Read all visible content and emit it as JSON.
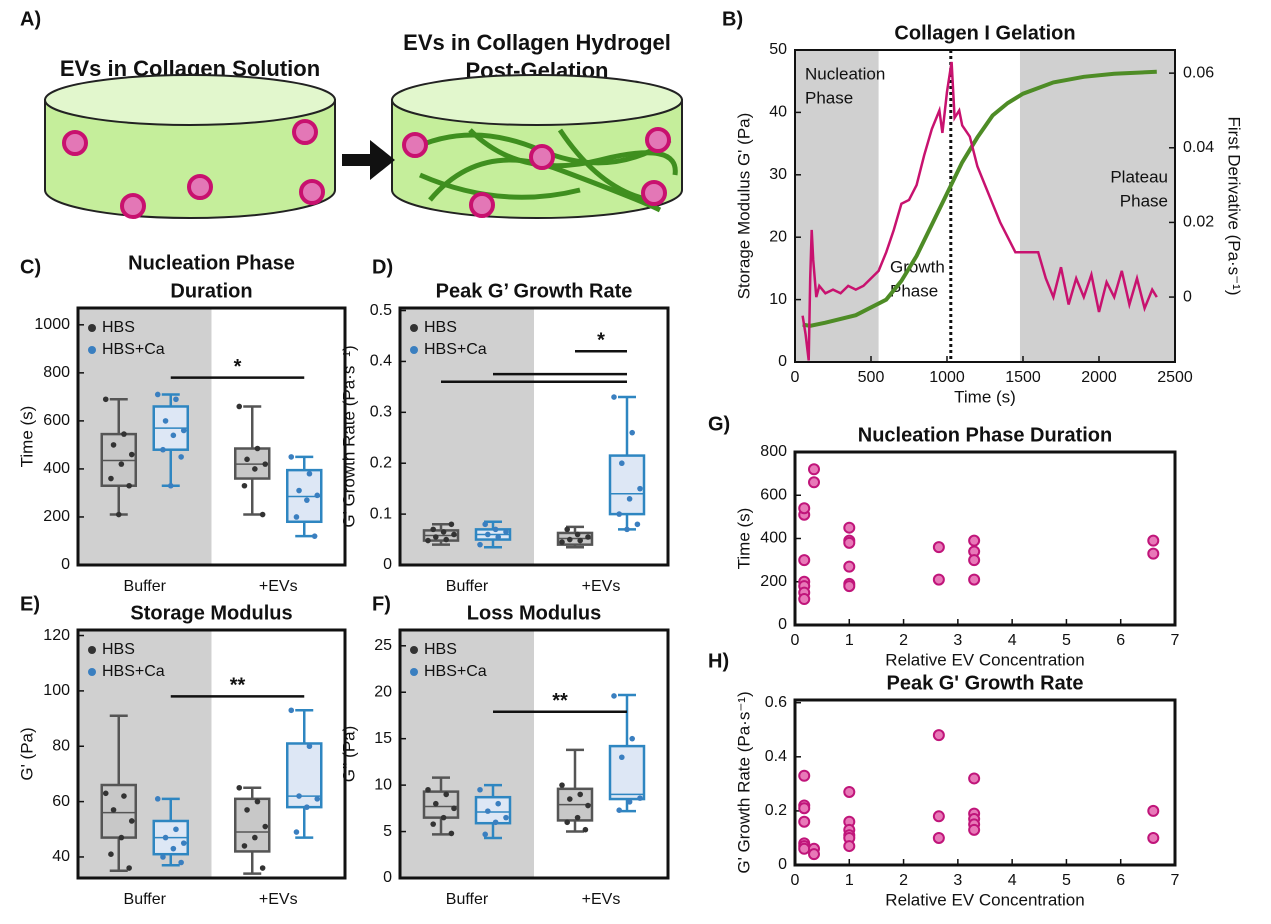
{
  "diagram": {
    "label": "A)",
    "left_title": "EVs in Collagen Solution",
    "right_title": [
      "EVs in Collagen Hydrogel",
      "Post-Gelation"
    ]
  },
  "chart_data": [
    {
      "type": "line",
      "panel_label": "B)",
      "title": "Collagen I Gelation",
      "xlabel": "Time (s)",
      "ylabel": "Storage Modulus G' (Pa)",
      "y2label": "First Derivative (Pa·s⁻¹)",
      "xlim": [
        0,
        2500
      ],
      "xticks": [
        0,
        500,
        1000,
        1500,
        2000,
        2500
      ],
      "ylim": [
        0,
        50
      ],
      "yticks": [
        0,
        10,
        20,
        30,
        40,
        50
      ],
      "y2lim": [
        -0.0174,
        0.0662
      ],
      "y2ticks": [
        0,
        0.02,
        0.04,
        0.06
      ],
      "shade_color": "#d0d0d0",
      "shaded_ranges": [
        [
          0,
          550
        ],
        [
          1480,
          2500
        ]
      ],
      "marker_x": 1025,
      "annotations": [
        {
          "lines": [
            "Nucleation",
            "Phase"
          ]
        },
        {
          "lines": [
            "Growth",
            "Phase"
          ]
        },
        {
          "lines": [
            "Plateau",
            "Phase"
          ]
        }
      ],
      "series": [
        {
          "color": "#4e8c26",
          "axis": "y",
          "x": [
            50,
            100,
            200,
            400,
            600,
            700,
            800,
            900,
            1000,
            1100,
            1200,
            1300,
            1400,
            1500,
            1700,
            1900,
            2100,
            2380
          ],
          "values": [
            6,
            5.8,
            6.3,
            7.5,
            10,
            13,
            17,
            22,
            27,
            32,
            36,
            39.5,
            41.5,
            43,
            44.8,
            45.7,
            46.2,
            46.5
          ]
        },
        {
          "color": "#c8126f",
          "axis": "y2",
          "x": [
            50,
            70,
            90,
            100,
            110,
            120,
            140,
            160,
            200,
            250,
            300,
            350,
            400,
            450,
            500,
            550,
            600,
            650,
            700,
            750,
            800,
            850,
            900,
            950,
            970,
            1000,
            1030,
            1050,
            1080,
            1100,
            1150,
            1200,
            1250,
            1300,
            1350,
            1400,
            1450,
            1500,
            1600,
            1650,
            1700,
            1750,
            1800,
            1850,
            1900,
            1950,
            2000,
            2050,
            2100,
            2150,
            2200,
            2250,
            2300,
            2350,
            2380
          ],
          "values": [
            -0.005,
            -0.01,
            -0.017,
            0.005,
            0.018,
            0.01,
            0,
            0.003,
            0.001,
            0.002,
            0.001,
            0.003,
            0.002,
            0.003,
            0.005,
            0.007,
            0.012,
            0.018,
            0.025,
            0.026,
            0.03,
            0.038,
            0.045,
            0.05,
            0.044,
            0.055,
            0.063,
            0.048,
            0.05,
            0.046,
            0.043,
            0.035,
            0.03,
            0.025,
            0.02,
            0.016,
            0.012,
            0.012,
            0.012,
            0.005,
            0,
            0.008,
            -0.002,
            0.005,
            0,
            0.006,
            -0.004,
            0.004,
            0,
            0.007,
            -0.002,
            0.005,
            -0.003,
            0.002,
            0
          ]
        }
      ]
    },
    {
      "type": "box",
      "panel_label": "C)",
      "title": [
        "Nucleation Phase",
        "Duration"
      ],
      "ylabel": "Time (s)",
      "categories": [
        "Buffer",
        "+EVs"
      ],
      "ylim": [
        0,
        1070
      ],
      "yticks": [
        0,
        200,
        400,
        600,
        800,
        1000
      ],
      "shade_color": "#d0d0d0",
      "series": [
        {
          "name": "HBS",
          "color": "#555555",
          "fill": "#c8c8c8",
          "point_color": "#333333",
          "boxes": [
            {
              "min": 210,
              "q1": 330,
              "median": 435,
              "q3": 545,
              "max": 690,
              "points": [
                690,
                545,
                500,
                460,
                420,
                360,
                330,
                210
              ]
            },
            {
              "min": 210,
              "q1": 360,
              "median": 420,
              "q3": 485,
              "max": 660,
              "points": [
                660,
                485,
                440,
                420,
                400,
                330,
                210
              ]
            }
          ]
        },
        {
          "name": "HBS+Ca",
          "color": "#2e86c1",
          "fill": "#dde7f5",
          "point_color": "#3a7fc0",
          "boxes": [
            {
              "min": 330,
              "q1": 480,
              "median": 570,
              "q3": 660,
              "max": 710,
              "points": [
                710,
                690,
                600,
                560,
                540,
                480,
                450,
                330
              ]
            },
            {
              "min": 120,
              "q1": 180,
              "median": 285,
              "q3": 395,
              "max": 450,
              "points": [
                450,
                380,
                310,
                290,
                270,
                200,
                120
              ]
            }
          ]
        }
      ],
      "significance": [
        {
          "from": [
            0,
            1
          ],
          "to": [
            1,
            1
          ],
          "y": 780,
          "label": "*"
        }
      ]
    },
    {
      "type": "box",
      "panel_label": "D)",
      "title": [
        "Peak G’ Growth Rate"
      ],
      "ylabel": "G' Growth Rate (Pa·s⁻¹)",
      "categories": [
        "Buffer",
        "+EVs"
      ],
      "ylim": [
        0,
        0.505
      ],
      "yticks": [
        0,
        0.1,
        0.2,
        0.3,
        0.4,
        0.5
      ],
      "shade_color": "#d0d0d0",
      "series": [
        {
          "name": "HBS",
          "color": "#555555",
          "fill": "#c8c8c8",
          "point_color": "#333333",
          "boxes": [
            {
              "min": 0.04,
              "q1": 0.048,
              "median": 0.058,
              "q3": 0.068,
              "max": 0.08,
              "points": [
                0.048,
                0.05,
                0.055,
                0.06,
                0.065,
                0.07,
                0.08
              ]
            },
            {
              "min": 0.035,
              "q1": 0.04,
              "median": 0.052,
              "q3": 0.063,
              "max": 0.075,
              "points": [
                0.045,
                0.048,
                0.05,
                0.055,
                0.06,
                0.07
              ]
            }
          ]
        },
        {
          "name": "HBS+Ca",
          "color": "#2e86c1",
          "fill": "#dde7f5",
          "point_color": "#3a7fc0",
          "boxes": [
            {
              "min": 0.035,
              "q1": 0.05,
              "median": 0.06,
              "q3": 0.07,
              "max": 0.085,
              "points": [
                0.04,
                0.055,
                0.06,
                0.065,
                0.07,
                0.08
              ]
            },
            {
              "min": 0.07,
              "q1": 0.1,
              "median": 0.14,
              "q3": 0.215,
              "max": 0.33,
              "points": [
                0.33,
                0.26,
                0.2,
                0.15,
                0.13,
                0.1,
                0.08,
                0.07
              ]
            }
          ]
        }
      ],
      "significance": [
        {
          "from": [
            0,
            0
          ],
          "to": [
            1,
            1
          ],
          "y": 0.36
        },
        {
          "from": [
            0,
            1
          ],
          "to": [
            1,
            1
          ],
          "y": 0.375
        },
        {
          "from": [
            1,
            0
          ],
          "to": [
            1,
            1
          ],
          "y": 0.42,
          "label": "*"
        }
      ]
    },
    {
      "type": "box",
      "panel_label": "E)",
      "title": [
        "Storage Modulus"
      ],
      "ylabel": "G' (Pa)",
      "categories": [
        "Buffer",
        "+EVs"
      ],
      "ylim": [
        32.4,
        122
      ],
      "yticks": [
        40,
        60,
        80,
        100,
        120
      ],
      "shade_color": "#d0d0d0",
      "series": [
        {
          "name": "HBS",
          "color": "#555555",
          "fill": "#c8c8c8",
          "point_color": "#333333",
          "boxes": [
            {
              "min": 35,
              "q1": 47,
              "median": 56,
              "q3": 66,
              "max": 91,
              "points": [
                63,
                62,
                57,
                53,
                47,
                41,
                36
              ]
            },
            {
              "min": 34,
              "q1": 42,
              "median": 49,
              "q3": 61,
              "max": 65,
              "points": [
                65,
                60,
                57,
                51,
                47,
                44,
                36
              ]
            }
          ]
        },
        {
          "name": "HBS+Ca",
          "color": "#2e86c1",
          "fill": "#dde7f5",
          "point_color": "#3a7fc0",
          "boxes": [
            {
              "min": 37,
              "q1": 41,
              "median": 47,
              "q3": 53,
              "max": 61,
              "points": [
                61,
                50,
                47,
                45,
                43,
                40,
                38
              ]
            },
            {
              "min": 47,
              "q1": 58,
              "median": 62,
              "q3": 81,
              "max": 93,
              "points": [
                93,
                80,
                62,
                61,
                58,
                49
              ]
            }
          ]
        }
      ],
      "significance": [
        {
          "from": [
            0,
            1
          ],
          "to": [
            1,
            1
          ],
          "y": 98,
          "label": "**"
        }
      ]
    },
    {
      "type": "box",
      "panel_label": "F)",
      "title": [
        "Loss Modulus"
      ],
      "ylabel": "G'' (Pa)",
      "categories": [
        "Buffer",
        "+EVs"
      ],
      "ylim": [
        0,
        26.7
      ],
      "yticks": [
        0,
        5,
        10,
        15,
        20,
        25
      ],
      "shade_color": "#d0d0d0",
      "series": [
        {
          "name": "HBS",
          "color": "#555555",
          "fill": "#c8c8c8",
          "point_color": "#333333",
          "boxes": [
            {
              "min": 4.7,
              "q1": 6.5,
              "median": 7.7,
              "q3": 9.3,
              "max": 10.8,
              "points": [
                9.5,
                9,
                8,
                7.5,
                6.5,
                5.8,
                4.8
              ]
            },
            {
              "min": 5,
              "q1": 6.2,
              "median": 7.9,
              "q3": 9.6,
              "max": 13.8,
              "points": [
                10,
                9,
                8.5,
                7.8,
                6.5,
                6,
                5.2
              ]
            }
          ]
        },
        {
          "name": "HBS+Ca",
          "color": "#2e86c1",
          "fill": "#dde7f5",
          "point_color": "#3a7fc0",
          "boxes": [
            {
              "min": 4.3,
              "q1": 5.9,
              "median": 7.1,
              "q3": 8.7,
              "max": 10,
              "points": [
                9.5,
                8,
                7.2,
                6.5,
                6,
                4.7
              ]
            },
            {
              "min": 7.2,
              "q1": 8.5,
              "median": 9,
              "q3": 14.2,
              "max": 19.7,
              "points": [
                19.6,
                15,
                13,
                8.6,
                8.2,
                7.3
              ]
            }
          ]
        }
      ],
      "significance": [
        {
          "from": [
            0,
            1
          ],
          "to": [
            1,
            1
          ],
          "y": 17.9,
          "label": "**"
        }
      ]
    },
    {
      "type": "scatter",
      "panel_label": "G)",
      "title": [
        "Nucleation Phase Duration"
      ],
      "xlabel": "Relative EV Concentration",
      "ylabel": "Time (s)",
      "xlim": [
        0,
        7
      ],
      "xticks": [
        0,
        1,
        2,
        3,
        4,
        5,
        6,
        7
      ],
      "ylim": [
        0,
        800
      ],
      "yticks": [
        0,
        200,
        400,
        600,
        800
      ],
      "color": "#e879b8",
      "edge": "#c0157a",
      "x": [
        0.17,
        0.17,
        0.17,
        0.17,
        0.17,
        0.17,
        0.17,
        0.35,
        0.35,
        1,
        1,
        1,
        1,
        1,
        1,
        2.65,
        2.65,
        3.3,
        3.3,
        3.3,
        3.3,
        6.6,
        6.6
      ],
      "values": [
        510,
        540,
        300,
        200,
        180,
        150,
        120,
        720,
        660,
        450,
        390,
        380,
        270,
        190,
        180,
        360,
        210,
        390,
        340,
        300,
        210,
        390,
        330
      ]
    },
    {
      "type": "scatter",
      "panel_label": "H)",
      "title": [
        "Peak G' Growth Rate"
      ],
      "xlabel": "Relative EV Concentration",
      "ylabel": "G' Growth Rate (Pa·s⁻¹)",
      "xlim": [
        0,
        7
      ],
      "xticks": [
        0,
        1,
        2,
        3,
        4,
        5,
        6,
        7
      ],
      "ylim": [
        0,
        0.61
      ],
      "yticks": [
        0,
        0.2,
        0.4,
        0.6
      ],
      "color": "#e879b8",
      "edge": "#c0157a",
      "x": [
        0.17,
        0.17,
        0.17,
        0.17,
        0.17,
        0.17,
        0.17,
        0.35,
        0.35,
        1,
        1,
        1,
        1,
        1,
        1,
        2.65,
        2.65,
        2.65,
        3.3,
        3.3,
        3.3,
        3.3,
        3.3,
        6.6,
        6.6
      ],
      "values": [
        0.33,
        0.22,
        0.21,
        0.16,
        0.08,
        0.07,
        0.06,
        0.06,
        0.04,
        0.27,
        0.16,
        0.13,
        0.11,
        0.1,
        0.07,
        0.48,
        0.18,
        0.1,
        0.32,
        0.19,
        0.17,
        0.15,
        0.13,
        0.2,
        0.1
      ]
    }
  ]
}
